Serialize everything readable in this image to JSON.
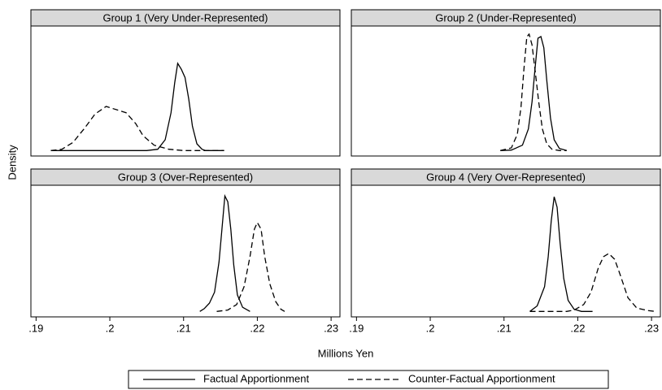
{
  "axes": {
    "xlabel": "Millions Yen",
    "ylabel": "Density"
  },
  "chart_data": [
    {
      "type": "line",
      "title": "Group 1 (Very Under-Represented)",
      "xlim": [
        0.1893,
        0.2312
      ],
      "ylim": [
        -20,
        460
      ],
      "series": [
        {
          "name": "Factual Apportionment",
          "color": "#000000",
          "dash": "solid",
          "x": [
            0.192,
            0.205,
            0.2065,
            0.2075,
            0.2083,
            0.2088,
            0.2092,
            0.2097,
            0.2102,
            0.2107,
            0.2112,
            0.2118,
            0.2125,
            0.213,
            0.2155
          ],
          "values": [
            0,
            0,
            5,
            40,
            140,
            250,
            322,
            300,
            270,
            190,
            90,
            25,
            5,
            0,
            0
          ]
        },
        {
          "name": "Counter-Factual Apportionment",
          "color": "#000000",
          "dash": "dashed",
          "x": [
            0.192,
            0.1935,
            0.195,
            0.1965,
            0.198,
            0.1995,
            0.201,
            0.2022,
            0.2035,
            0.2045,
            0.206,
            0.208,
            0.21,
            0.2155
          ],
          "values": [
            0,
            5,
            30,
            80,
            135,
            163,
            150,
            140,
            100,
            55,
            20,
            5,
            0,
            0
          ]
        }
      ]
    },
    {
      "type": "line",
      "title": "Group 2 (Under-Represented)",
      "xlim": [
        0.1893,
        0.2312
      ],
      "ylim": [
        -20,
        460
      ],
      "series": [
        {
          "color": "#000000",
          "dash": "solid",
          "x": [
            0.2095,
            0.211,
            0.2125,
            0.2133,
            0.2138,
            0.2142,
            0.2146,
            0.215,
            0.2154,
            0.2158,
            0.2163,
            0.2168,
            0.2175,
            0.2185
          ],
          "values": [
            0,
            2,
            20,
            80,
            180,
            300,
            415,
            421,
            380,
            260,
            120,
            40,
            8,
            0
          ]
        },
        {
          "color": "#000000",
          "dash": "dashed",
          "x": [
            0.2095,
            0.211,
            0.2118,
            0.2123,
            0.2127,
            0.2131,
            0.2134,
            0.2138,
            0.2142,
            0.2147,
            0.2152,
            0.2158,
            0.2165,
            0.2175,
            0.2185
          ],
          "values": [
            0,
            10,
            60,
            160,
            300,
            420,
            430,
            390,
            300,
            180,
            80,
            25,
            5,
            0,
            0
          ]
        }
      ]
    },
    {
      "type": "line",
      "title": "Group 3 (Over-Represented)",
      "xlim": [
        0.1893,
        0.2312
      ],
      "ylim": [
        -20,
        460
      ],
      "xticks": [
        {
          "value": 0.19,
          "label": ".19"
        },
        {
          "value": 0.2,
          "label": ".2"
        },
        {
          "value": 0.21,
          "label": ".21"
        },
        {
          "value": 0.22,
          "label": ".22"
        },
        {
          "value": 0.23,
          "label": ".23"
        }
      ],
      "series": [
        {
          "color": "#000000",
          "dash": "solid",
          "x": [
            0.2122,
            0.2128,
            0.2135,
            0.2142,
            0.2148,
            0.2152,
            0.2156,
            0.216,
            0.2164,
            0.2168,
            0.2173,
            0.218,
            0.219
          ],
          "values": [
            0,
            10,
            30,
            70,
            180,
            300,
            421,
            400,
            300,
            170,
            60,
            15,
            0
          ]
        },
        {
          "color": "#000000",
          "dash": "dashed",
          "x": [
            0.2145,
            0.216,
            0.2172,
            0.2182,
            0.219,
            0.2196,
            0.22,
            0.2205,
            0.221,
            0.2217,
            0.2225,
            0.2232,
            0.2237
          ],
          "values": [
            0,
            5,
            25,
            90,
            200,
            300,
            324,
            300,
            200,
            100,
            35,
            8,
            0
          ]
        }
      ]
    },
    {
      "type": "line",
      "title": "Group 4 (Very Over-Represented)",
      "xlim": [
        0.1893,
        0.2312
      ],
      "ylim": [
        -20,
        460
      ],
      "xticks": [
        {
          "value": 0.19,
          "label": ".19"
        },
        {
          "value": 0.2,
          "label": ".2"
        },
        {
          "value": 0.21,
          "label": ".21"
        },
        {
          "value": 0.22,
          "label": ".22"
        },
        {
          "value": 0.23,
          "label": ".23"
        }
      ],
      "series": [
        {
          "color": "#000000",
          "dash": "solid",
          "x": [
            0.2135,
            0.2145,
            0.2155,
            0.216,
            0.2164,
            0.2168,
            0.2172,
            0.2176,
            0.2181,
            0.2187,
            0.2195,
            0.2205,
            0.222
          ],
          "values": [
            0,
            20,
            90,
            200,
            330,
            418,
            380,
            250,
            120,
            40,
            8,
            0,
            0
          ]
        },
        {
          "color": "#000000",
          "dash": "dashed",
          "x": [
            0.2135,
            0.2185,
            0.2195,
            0.2208,
            0.2218,
            0.2228,
            0.2235,
            0.2242,
            0.225,
            0.2258,
            0.2268,
            0.228,
            0.2295,
            0.2305
          ],
          "values": [
            0,
            0,
            5,
            25,
            70,
            160,
            200,
            211,
            190,
            130,
            50,
            12,
            3,
            0
          ]
        }
      ]
    }
  ]
}
